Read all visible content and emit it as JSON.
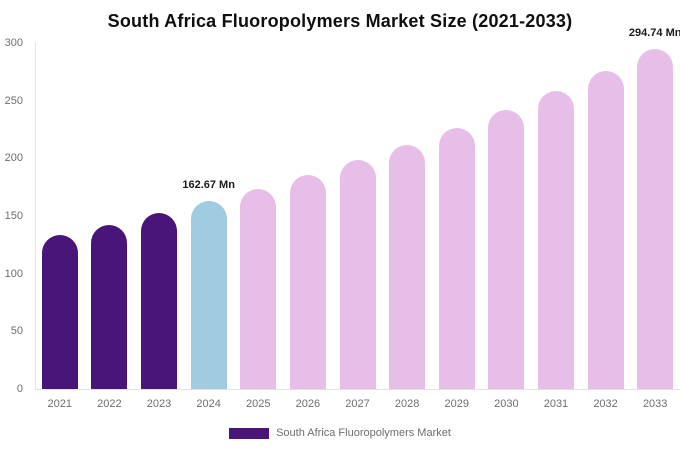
{
  "chart": {
    "title": "South Africa Fluoropolymers Market Size (2021-2033)",
    "legend": {
      "label": "South Africa Fluoropolymers Market",
      "swatch_color": "#4A1578"
    }
  },
  "chart_data": {
    "type": "bar",
    "title": "South Africa Fluoropolymers Market Size (2021-2033)",
    "categories": [
      "2021",
      "2022",
      "2023",
      "2024",
      "2025",
      "2026",
      "2027",
      "2028",
      "2029",
      "2030",
      "2031",
      "2032",
      "2033"
    ],
    "values": [
      133.43,
      142.54,
      152.27,
      162.67,
      173.78,
      185.64,
      198.32,
      211.86,
      226.32,
      241.78,
      258.29,
      275.92,
      294.74
    ],
    "series_name": "South Africa Fluoropolymers Market",
    "unit": "Mn",
    "xlabel": "",
    "ylabel": "",
    "ylim": [
      0,
      300
    ],
    "y_ticks": [
      0,
      50,
      100,
      150,
      200,
      250,
      300
    ],
    "grid": false,
    "legend_position": "bottom",
    "colors_by_year": [
      "#4A1578",
      "#4A1578",
      "#4A1578",
      "#A1CBE1",
      "#E6BEE7",
      "#E6BEE7",
      "#E6BEE7",
      "#E6BEE7",
      "#E6BEE7",
      "#E6BEE7",
      "#E6BEE7",
      "#E6BEE7",
      "#E6BEE7"
    ],
    "color_roles": {
      "historical": "#4A1578",
      "base_year": "#A1CBE1",
      "forecast": "#E6BEE7"
    },
    "annotations": [
      {
        "category": "2024",
        "label": "162.67 Mn"
      },
      {
        "category": "2033",
        "label": "294.74 Mn"
      }
    ]
  }
}
